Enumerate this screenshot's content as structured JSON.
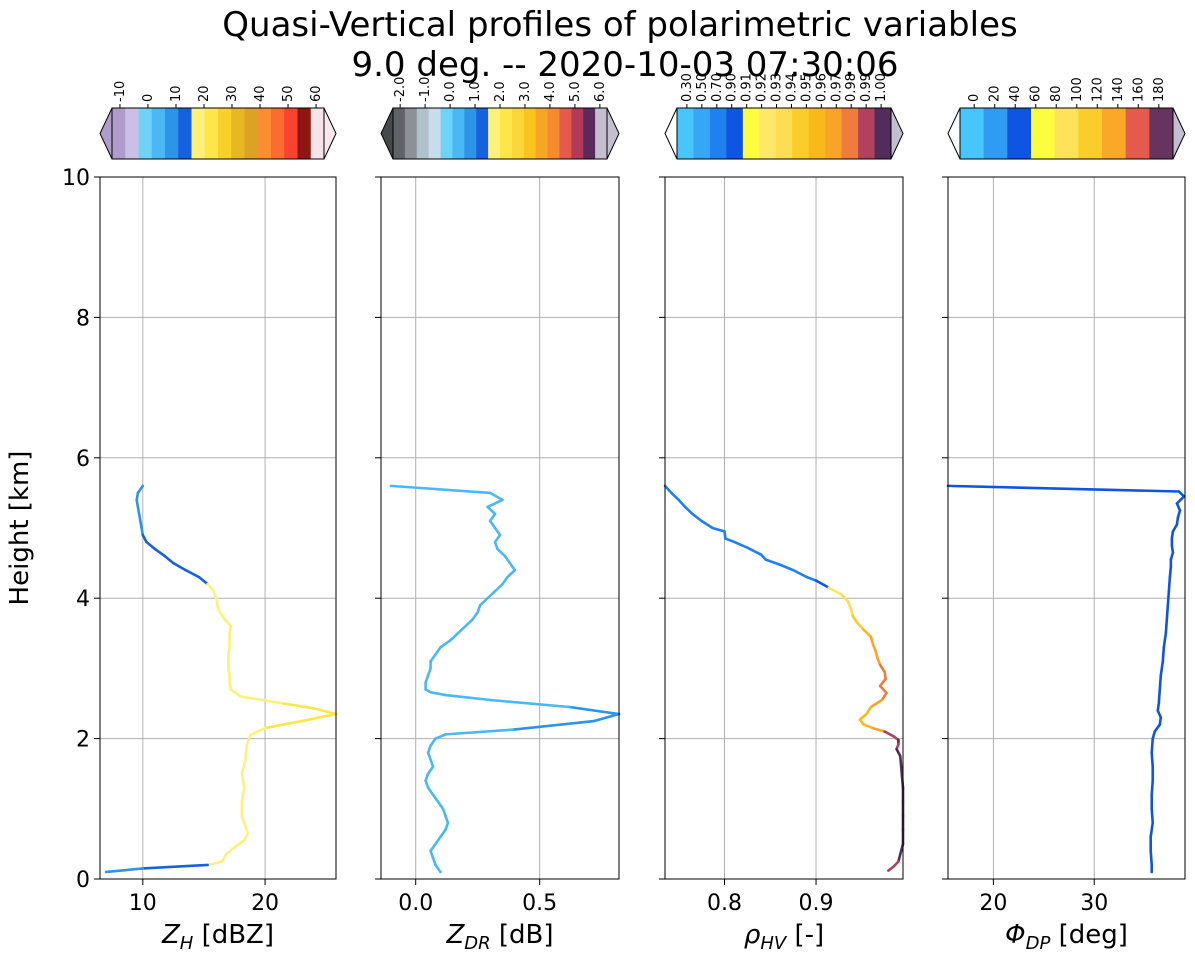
{
  "figure": {
    "title_line1": "Quasi-Vertical profiles of polarimetric variables",
    "title_line2": "9.0 deg. -- 2020-10-03 07:30:06",
    "shared_ylabel": "Height [km]"
  },
  "chart_data": [
    {
      "type": "line",
      "panel": "zh",
      "xlabel_main": "Z",
      "xlabel_sub": "H",
      "xlabel_unit": " [dBZ]",
      "xlim": [
        6.5,
        25.8
      ],
      "xticks": [
        10,
        20
      ],
      "xtick_labels": [
        "10",
        "20"
      ],
      "ylim": [
        0,
        10
      ],
      "yticks": [
        0,
        2,
        4,
        6,
        8,
        10
      ],
      "ytick_labels": [
        "0",
        "2",
        "4",
        "6",
        "8",
        "10"
      ],
      "grid": true,
      "colorbar": {
        "labels": [
          "-10",
          "0",
          "10",
          "20",
          "30",
          "40",
          "50",
          "60"
        ],
        "bounds": [
          -15,
          -10,
          -5,
          0,
          5,
          10,
          15,
          20,
          25,
          30,
          35,
          40,
          45,
          50,
          55,
          60,
          65
        ],
        "colors": [
          "#b09ccb",
          "#cbc0e3",
          "#6fd3f8",
          "#4ab8f4",
          "#2e94e8",
          "#1661dd",
          "#fdf17c",
          "#fde64a",
          "#f7d12a",
          "#e8b821",
          "#dca224",
          "#fc8e31",
          "#fd6b31",
          "#f8432f",
          "#8f1612",
          "#f6e4ea"
        ],
        "extend_left": "#b09ccb",
        "extend_right": "#fbe8ee"
      },
      "points": [
        [
          10.0,
          5.6
        ],
        [
          9.6,
          5.5
        ],
        [
          9.5,
          5.4
        ],
        [
          9.6,
          5.3
        ],
        [
          9.7,
          5.2
        ],
        [
          9.8,
          5.1
        ],
        [
          9.9,
          5.0
        ],
        [
          10.0,
          4.9
        ],
        [
          10.3,
          4.8
        ],
        [
          11.0,
          4.7
        ],
        [
          11.8,
          4.6
        ],
        [
          12.5,
          4.5
        ],
        [
          13.5,
          4.4
        ],
        [
          14.6,
          4.3
        ],
        [
          15.3,
          4.2
        ],
        [
          15.8,
          4.1
        ],
        [
          16.0,
          4.0
        ],
        [
          16.1,
          3.9
        ],
        [
          16.3,
          3.8
        ],
        [
          16.7,
          3.7
        ],
        [
          17.2,
          3.6
        ],
        [
          17.1,
          3.5
        ],
        [
          17.1,
          3.4
        ],
        [
          17.1,
          3.3
        ],
        [
          17.0,
          3.2
        ],
        [
          17.0,
          3.1
        ],
        [
          17.0,
          3.0
        ],
        [
          17.1,
          2.9
        ],
        [
          17.1,
          2.8
        ],
        [
          17.2,
          2.7
        ],
        [
          18.0,
          2.6
        ],
        [
          21.5,
          2.5
        ],
        [
          24.0,
          2.43
        ],
        [
          25.8,
          2.35
        ],
        [
          23.0,
          2.25
        ],
        [
          20.0,
          2.15
        ],
        [
          18.8,
          2.05
        ],
        [
          18.5,
          1.9
        ],
        [
          18.4,
          1.7
        ],
        [
          18.1,
          1.5
        ],
        [
          18.3,
          1.3
        ],
        [
          18.1,
          1.1
        ],
        [
          18.1,
          0.9
        ],
        [
          18.4,
          0.75
        ],
        [
          18.6,
          0.65
        ],
        [
          18.3,
          0.55
        ],
        [
          17.5,
          0.45
        ],
        [
          16.8,
          0.35
        ],
        [
          16.5,
          0.25
        ],
        [
          15.3,
          0.2
        ],
        [
          10.0,
          0.15
        ],
        [
          7.0,
          0.1
        ]
      ]
    },
    {
      "type": "line",
      "panel": "zdr",
      "xlabel_main": "Z",
      "xlabel_sub": "DR",
      "xlabel_unit": " [dB]",
      "xlim": [
        -0.14,
        0.82
      ],
      "xticks": [
        0.0,
        0.5
      ],
      "xtick_labels": [
        "0.0",
        "0.5"
      ],
      "ylim": [
        0,
        10
      ],
      "yticks": [
        0,
        2,
        4,
        6,
        8,
        10
      ],
      "grid": true,
      "colorbar": {
        "labels": [
          "-2.0",
          "-1.0",
          "0.0",
          "1.0",
          "2.0",
          "3.0",
          "4.0",
          "5.0",
          "6.0"
        ],
        "bounds": [
          -3,
          -2,
          -1.5,
          -1,
          -0.5,
          0,
          0.5,
          1,
          1.5,
          2,
          2.5,
          3,
          3.5,
          4,
          4.5,
          5,
          5.5,
          6,
          6.5
        ],
        "colors": [
          "#5f6367",
          "#8b9196",
          "#b1c1cc",
          "#c9dcea",
          "#6fd3f8",
          "#4ab8f4",
          "#2e94e8",
          "#1661dd",
          "#fdf17c",
          "#fde64a",
          "#fdd63a",
          "#f9c41e",
          "#f5a624",
          "#f58a2e",
          "#e45a4d",
          "#b13a5a",
          "#5b2a5c",
          "#c4bfcf"
        ],
        "extend_left": "#46494c",
        "extend_right": "#c4bfcf"
      },
      "points": [
        [
          0.1,
          0.1
        ],
        [
          0.08,
          0.2
        ],
        [
          0.07,
          0.3
        ],
        [
          0.06,
          0.4
        ],
        [
          0.08,
          0.5
        ],
        [
          0.1,
          0.6
        ],
        [
          0.12,
          0.7
        ],
        [
          0.13,
          0.8
        ],
        [
          0.12,
          0.9
        ],
        [
          0.11,
          1.0
        ],
        [
          0.09,
          1.1
        ],
        [
          0.07,
          1.2
        ],
        [
          0.05,
          1.3
        ],
        [
          0.04,
          1.4
        ],
        [
          0.05,
          1.5
        ],
        [
          0.07,
          1.6
        ],
        [
          0.06,
          1.7
        ],
        [
          0.05,
          1.8
        ],
        [
          0.06,
          1.9
        ],
        [
          0.08,
          2.0
        ],
        [
          0.12,
          2.06
        ],
        [
          0.4,
          2.13
        ],
        [
          0.72,
          2.25
        ],
        [
          0.82,
          2.35
        ],
        [
          0.62,
          2.45
        ],
        [
          0.3,
          2.55
        ],
        [
          0.12,
          2.62
        ],
        [
          0.06,
          2.66
        ],
        [
          0.04,
          2.7
        ],
        [
          0.04,
          2.8
        ],
        [
          0.05,
          2.9
        ],
        [
          0.06,
          3.0
        ],
        [
          0.06,
          3.1
        ],
        [
          0.08,
          3.2
        ],
        [
          0.1,
          3.3
        ],
        [
          0.14,
          3.4
        ],
        [
          0.17,
          3.5
        ],
        [
          0.2,
          3.6
        ],
        [
          0.23,
          3.7
        ],
        [
          0.25,
          3.8
        ],
        [
          0.26,
          3.9
        ],
        [
          0.29,
          4.0
        ],
        [
          0.32,
          4.1
        ],
        [
          0.35,
          4.2
        ],
        [
          0.37,
          4.3
        ],
        [
          0.4,
          4.4
        ],
        [
          0.38,
          4.5
        ],
        [
          0.36,
          4.6
        ],
        [
          0.33,
          4.7
        ],
        [
          0.32,
          4.8
        ],
        [
          0.34,
          4.9
        ],
        [
          0.32,
          5.0
        ],
        [
          0.3,
          5.1
        ],
        [
          0.32,
          5.2
        ],
        [
          0.29,
          5.3
        ],
        [
          0.35,
          5.4
        ],
        [
          0.3,
          5.5
        ],
        [
          -0.1,
          5.6
        ]
      ]
    },
    {
      "type": "line",
      "panel": "rhohv",
      "xlabel_main": "ρ",
      "xlabel_sub": "HV",
      "xlabel_unit": " [-]",
      "xlim": [
        0.735,
        0.995
      ],
      "xticks": [
        0.8,
        0.9
      ],
      "xtick_labels": [
        "0.8",
        "0.9"
      ],
      "ylim": [
        0,
        10
      ],
      "yticks": [
        0,
        2,
        4,
        6,
        8,
        10
      ],
      "grid": true,
      "colorbar": {
        "labels": [
          "0.30",
          "0.50",
          "0.70",
          "0.90",
          "0.91",
          "0.92",
          "0.93",
          "0.94",
          "0.95",
          "0.96",
          "0.97",
          "0.98",
          "0.99",
          "1.00"
        ],
        "bounds": [
          0.3,
          0.5,
          0.7,
          0.9,
          0.91,
          0.92,
          0.93,
          0.94,
          0.95,
          0.96,
          0.97,
          0.98,
          0.99,
          1.0
        ],
        "colors": [
          "#46c6fc",
          "#36a7f5",
          "#2180f0",
          "#0f55e1",
          "#fdfc3f",
          "#fde86a",
          "#fddd52",
          "#fbcd2b",
          "#f8ba1b",
          "#f7a428",
          "#ef7c3d",
          "#b2415e",
          "#512d5b"
        ],
        "extend_left": "#ffffff",
        "extend_right": "#c4bfcf"
      },
      "points": [
        [
          0.735,
          5.6
        ],
        [
          0.742,
          5.5
        ],
        [
          0.75,
          5.4
        ],
        [
          0.757,
          5.3
        ],
        [
          0.765,
          5.2
        ],
        [
          0.775,
          5.1
        ],
        [
          0.787,
          5.0
        ],
        [
          0.8,
          4.95
        ],
        [
          0.801,
          4.85
        ],
        [
          0.811,
          4.8
        ],
        [
          0.825,
          4.72
        ],
        [
          0.84,
          4.62
        ],
        [
          0.845,
          4.55
        ],
        [
          0.86,
          4.48
        ],
        [
          0.875,
          4.4
        ],
        [
          0.89,
          4.3
        ],
        [
          0.9,
          4.25
        ],
        [
          0.914,
          4.15
        ],
        [
          0.928,
          4.05
        ],
        [
          0.935,
          3.95
        ],
        [
          0.938,
          3.85
        ],
        [
          0.94,
          3.75
        ],
        [
          0.945,
          3.65
        ],
        [
          0.952,
          3.55
        ],
        [
          0.96,
          3.45
        ],
        [
          0.962,
          3.35
        ],
        [
          0.965,
          3.25
        ],
        [
          0.967,
          3.15
        ],
        [
          0.97,
          3.05
        ],
        [
          0.975,
          2.95
        ],
        [
          0.976,
          2.85
        ],
        [
          0.97,
          2.75
        ],
        [
          0.977,
          2.65
        ],
        [
          0.972,
          2.55
        ],
        [
          0.96,
          2.45
        ],
        [
          0.955,
          2.35
        ],
        [
          0.948,
          2.27
        ],
        [
          0.952,
          2.2
        ],
        [
          0.962,
          2.15
        ],
        [
          0.975,
          2.1
        ],
        [
          0.985,
          2.03
        ],
        [
          0.99,
          1.98
        ],
        [
          0.99,
          1.92
        ],
        [
          0.988,
          1.85
        ],
        [
          0.992,
          1.75
        ],
        [
          0.993,
          1.6
        ],
        [
          0.994,
          1.45
        ],
        [
          0.995,
          1.3
        ],
        [
          0.995,
          1.1
        ],
        [
          0.995,
          0.9
        ],
        [
          0.995,
          0.7
        ],
        [
          0.995,
          0.5
        ],
        [
          0.992,
          0.35
        ],
        [
          0.99,
          0.25
        ],
        [
          0.985,
          0.18
        ],
        [
          0.979,
          0.12
        ]
      ]
    },
    {
      "type": "line",
      "panel": "phidp",
      "xlabel_main": "Φ",
      "xlabel_sub": "DP",
      "xlabel_unit": " [deg]",
      "xlim": [
        15.5,
        39.0
      ],
      "xticks": [
        20,
        30
      ],
      "xtick_labels": [
        "20",
        "30"
      ],
      "ylim": [
        0,
        10
      ],
      "yticks": [
        0,
        2,
        4,
        6,
        8,
        10
      ],
      "grid": true,
      "colorbar": {
        "labels": [
          "0",
          "20",
          "40",
          "60",
          "80",
          "100",
          "120",
          "140",
          "160",
          "180"
        ],
        "bounds": [
          -10,
          0,
          20,
          40,
          60,
          80,
          100,
          120,
          140,
          160,
          180,
          190
        ],
        "colors": [
          "#46c6fc",
          "#2f9bf2",
          "#0f55e1",
          "#fdfc3f",
          "#fde25a",
          "#fbcd2b",
          "#f9a827",
          "#e45a4d",
          "#66345e"
        ],
        "extend_left": "#ffffff",
        "extend_right": "#c4bfcf"
      },
      "points": [
        [
          15.5,
          5.6
        ],
        [
          38.4,
          5.52
        ],
        [
          38.9,
          5.45
        ],
        [
          38.2,
          5.35
        ],
        [
          38.5,
          5.25
        ],
        [
          38.3,
          5.15
        ],
        [
          38.2,
          5.05
        ],
        [
          37.8,
          4.95
        ],
        [
          37.7,
          4.85
        ],
        [
          37.7,
          4.75
        ],
        [
          37.8,
          4.65
        ],
        [
          37.6,
          4.55
        ],
        [
          37.6,
          4.45
        ],
        [
          37.5,
          4.3
        ],
        [
          37.4,
          4.1
        ],
        [
          37.3,
          3.9
        ],
        [
          37.2,
          3.7
        ],
        [
          37.1,
          3.5
        ],
        [
          36.9,
          3.3
        ],
        [
          36.8,
          3.1
        ],
        [
          36.6,
          2.9
        ],
        [
          36.5,
          2.7
        ],
        [
          36.4,
          2.5
        ],
        [
          36.3,
          2.4
        ],
        [
          36.6,
          2.3
        ],
        [
          36.5,
          2.2
        ],
        [
          36.0,
          2.1
        ],
        [
          35.8,
          2.0
        ],
        [
          35.7,
          1.8
        ],
        [
          35.8,
          1.6
        ],
        [
          35.8,
          1.4
        ],
        [
          35.7,
          1.2
        ],
        [
          35.7,
          1.0
        ],
        [
          35.8,
          0.8
        ],
        [
          35.6,
          0.6
        ],
        [
          35.6,
          0.4
        ],
        [
          35.7,
          0.2
        ],
        [
          35.7,
          0.1
        ]
      ]
    }
  ]
}
